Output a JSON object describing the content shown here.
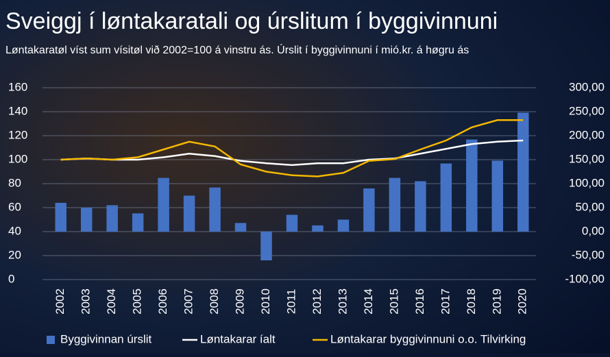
{
  "chart_data": {
    "type": "bar_line",
    "title": "Sveiggj í løntakaratali og úrslitum í byggivinnuni",
    "subtitle": "Løntakaratøl víst sum vísitøl við 2002=100 á vinstru ás. Úrslit í byggivinnuni í mió.kr. á høgru ás",
    "categories": [
      "2002",
      "2003",
      "2004",
      "2005",
      "2006",
      "2007",
      "2008",
      "2009",
      "2010",
      "2011",
      "2012",
      "2013",
      "2014",
      "2015",
      "2016",
      "2017",
      "2018",
      "2019",
      "2020"
    ],
    "ylim": [
      0,
      160
    ],
    "yticks": [
      0,
      20,
      40,
      60,
      80,
      100,
      120,
      140,
      160
    ],
    "y2lim": [
      -100,
      300
    ],
    "y2ticks": [
      {
        "value": -100,
        "label": "-100,00"
      },
      {
        "value": -50,
        "label": "-50,00"
      },
      {
        "value": 0,
        "label": "0,00"
      },
      {
        "value": 50,
        "label": "50,00"
      },
      {
        "value": 100,
        "label": "100,00"
      },
      {
        "value": 150,
        "label": "150,00"
      },
      {
        "value": 200,
        "label": "200,00"
      },
      {
        "value": 250,
        "label": "250,00"
      },
      {
        "value": 300,
        "label": "300,00"
      }
    ],
    "grid": true,
    "legend": "bottom",
    "series": [
      {
        "name": "Byggivinnan úrslit",
        "type": "bar",
        "axis": "y2",
        "color": "#4472c4",
        "values": [
          60,
          50,
          55,
          38,
          112,
          75,
          92,
          18,
          -60,
          35,
          13,
          25,
          90,
          112,
          105,
          142,
          192,
          148,
          248
        ]
      },
      {
        "name": "Løntakarar íalt",
        "type": "line",
        "color": "#ffffff",
        "values": [
          100,
          101,
          100,
          100,
          102,
          105,
          103,
          99,
          97,
          95.5,
          97,
          97,
          100,
          101,
          105,
          109,
          113,
          115,
          116
        ]
      },
      {
        "name": "Løntakarar byggivinnuni o.o. Tilvirking",
        "type": "line",
        "color": "#f5b800",
        "values": [
          100,
          101,
          100,
          102,
          108.5,
          115,
          111,
          96,
          90,
          87,
          86,
          89,
          99,
          100.5,
          108.5,
          116,
          127,
          133,
          133
        ]
      }
    ]
  }
}
